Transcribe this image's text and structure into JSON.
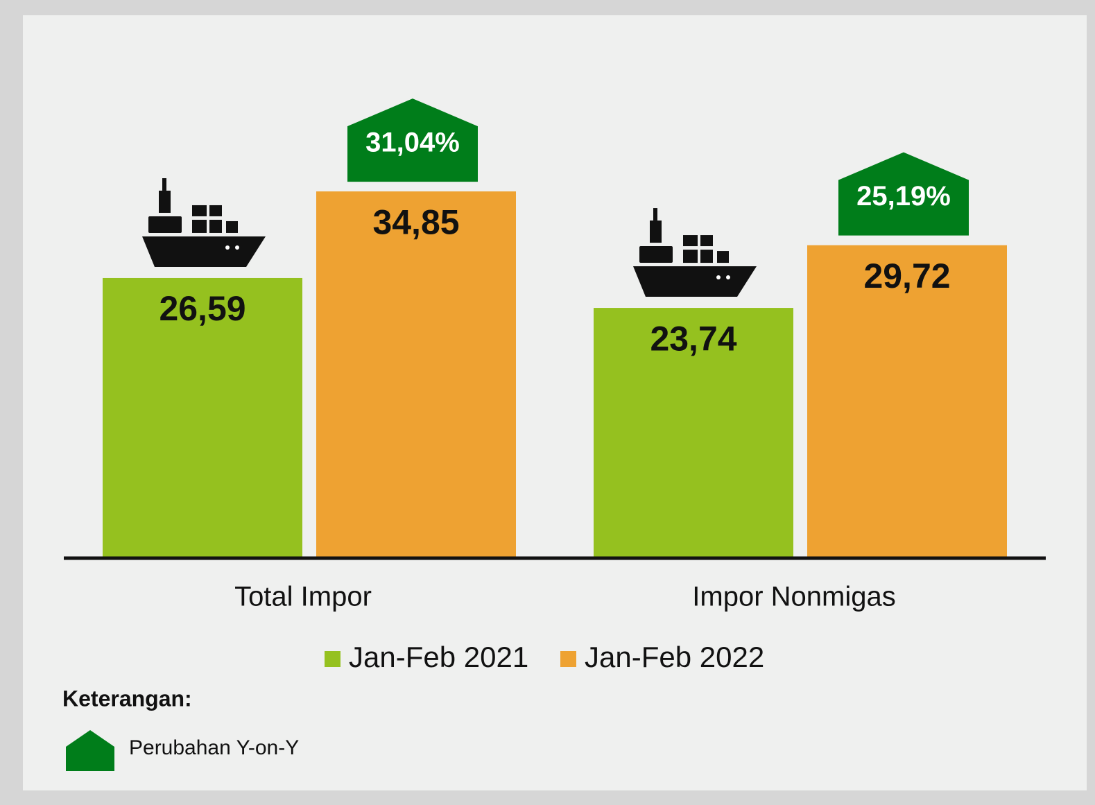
{
  "chart_data": {
    "type": "bar",
    "categories": [
      "Total Impor",
      "Impor Nonmigas"
    ],
    "series": [
      {
        "name": "Jan-Feb 2021",
        "color": "#95c11f",
        "values": [
          26.59,
          23.74
        ],
        "value_labels": [
          "26,59",
          "23,74"
        ]
      },
      {
        "name": "Jan-Feb 2022",
        "color": "#eea232",
        "values": [
          34.85,
          29.72
        ],
        "value_labels": [
          "34,85",
          "29,72"
        ]
      }
    ],
    "changes": [
      {
        "value": 31.04,
        "label": "31,04%"
      },
      {
        "value": 25.19,
        "label": "25,19%"
      }
    ],
    "change_color": "#007d1a",
    "note_title": "Keterangan:",
    "note_label": "Perubahan Y-on-Y"
  }
}
